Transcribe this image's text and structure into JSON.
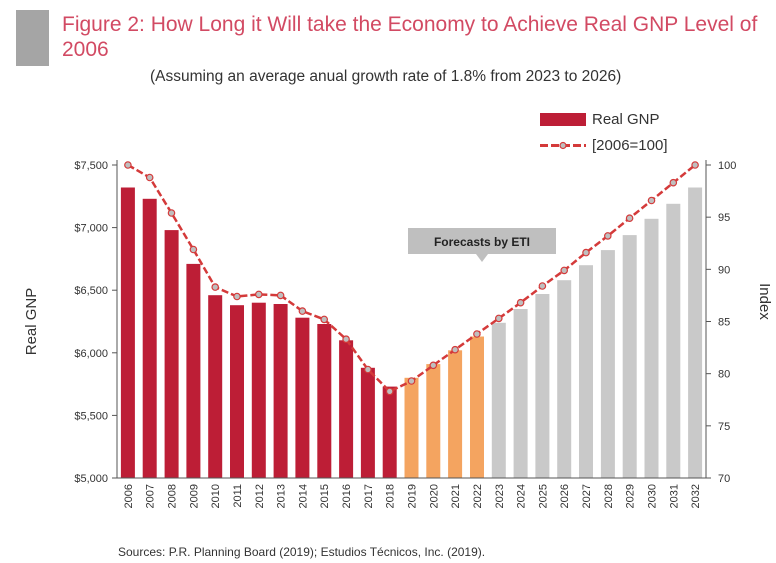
{
  "header": {
    "title": "Figure 2: How Long it Will take the Economy to Achieve Real GNP Level of 2006",
    "subtitle": "(Assuming an average anual growth rate of 1.8% from 2023 to 2026)"
  },
  "footer": {
    "source": "Sources: P.R. Planning Board (2019); Estudios Técnicos, Inc. (2019)."
  },
  "colors": {
    "historical": "#bd1e36",
    "estimate": "#f4a460",
    "forecast": "#c9c9c9",
    "line": "#d43a3a",
    "marker": "#bfbfbf",
    "accent": "#a5a5a5"
  },
  "chart_data": {
    "type": "bar",
    "categories": [
      "2006",
      "2007",
      "2008",
      "2009",
      "2010",
      "2011",
      "2012",
      "2013",
      "2014",
      "2015",
      "2016",
      "2017",
      "2018",
      "2019",
      "2020",
      "2021",
      "2022",
      "2023",
      "2024",
      "2025",
      "2026",
      "2027",
      "2028",
      "2029",
      "2030",
      "2031",
      "2032"
    ],
    "series": [
      {
        "name": "Real GNP",
        "axis": "left",
        "values": [
          7320,
          7230,
          6980,
          6710,
          6460,
          6380,
          6400,
          6390,
          6280,
          6230,
          6100,
          5880,
          5730,
          5800,
          5910,
          6020,
          6130,
          6240,
          6350,
          6470,
          6580,
          6700,
          6820,
          6940,
          7070,
          7190,
          7320
        ]
      },
      {
        "name": "[2006=100]",
        "axis": "right",
        "type": "line",
        "values": [
          100,
          98.8,
          95.4,
          91.9,
          88.3,
          87.4,
          87.6,
          87.5,
          86.0,
          85.2,
          83.3,
          80.4,
          78.3,
          79.3,
          80.8,
          82.3,
          83.8,
          85.3,
          86.8,
          88.4,
          89.9,
          91.6,
          93.2,
          94.9,
          96.6,
          98.3,
          100
        ]
      }
    ],
    "bar_groups": {
      "historical": [
        "2006",
        "2018"
      ],
      "estimate": [
        "2019",
        "2022"
      ],
      "forecast": [
        "2023",
        "2032"
      ]
    },
    "yticks_left": [
      "$5,000",
      "$5,500",
      "$6,000",
      "$6,500",
      "$7,000",
      "$7,500"
    ],
    "yticks_right": [
      "70",
      "75",
      "80",
      "85",
      "90",
      "95",
      "100"
    ],
    "ylim_left": [
      5000,
      7500
    ],
    "ylim_right": [
      70,
      100
    ],
    "ylabel_left": "Real GNP",
    "ylabel_right": "Index",
    "annotation": "Forecasts by  ETI",
    "grid": false,
    "legend_position": "top-right"
  }
}
